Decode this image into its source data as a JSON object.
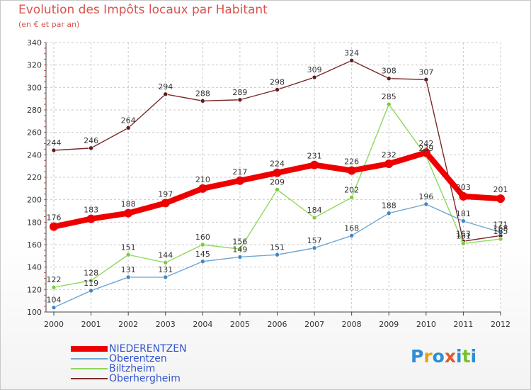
{
  "title": "Evolution des Impôts locaux par Habitant",
  "subtitle": "(en € et par an)",
  "logo": {
    "letters": [
      "P",
      "r",
      "o",
      "x",
      "i",
      "t",
      "i"
    ],
    "colors": [
      "#2a8fd6",
      "#e8a21a",
      "#2a8fd6",
      "#e05a2a",
      "#2a8fd6",
      "#7bbf2e",
      "#2a8fd6"
    ]
  },
  "chart_data": {
    "type": "line",
    "title": "Evolution des Impôts locaux par Habitant",
    "subtitle": "(en € et par an)",
    "xlabel": "",
    "ylabel": "",
    "ylim": [
      100,
      340
    ],
    "yticks": [
      "100",
      "120",
      "140",
      "160",
      "180",
      "200",
      "220",
      "240",
      "260",
      "280",
      "300",
      "320",
      "340"
    ],
    "categories": [
      "2000",
      "2001",
      "2002",
      "2003",
      "2004",
      "2005",
      "2006",
      "2007",
      "2008",
      "2009",
      "2010",
      "2011",
      "2012"
    ],
    "grid": true,
    "legend_position": "bottom-left",
    "series": [
      {
        "name": "Oberhergheim",
        "color": "#7a2a2a",
        "markerColor": "#5e1e1e",
        "width": "thin",
        "values": [
          244,
          246,
          264,
          294,
          288,
          289,
          298,
          309,
          324,
          308,
          307,
          163,
          168
        ],
        "labels": [
          "244",
          "246",
          "264",
          "294",
          "288",
          "289",
          "298",
          "309",
          "324",
          "308",
          "307",
          "163",
          "168"
        ]
      },
      {
        "name": "Biltzheim",
        "color": "#8fd85c",
        "markerColor": "#7ccc3e",
        "width": "thin",
        "values": [
          122,
          128,
          151,
          144,
          160,
          156,
          209,
          184,
          202,
          285,
          239,
          161,
          165
        ],
        "labels": [
          "122",
          "128",
          "151",
          "144",
          "160",
          "156",
          "209",
          "184",
          "202",
          "285",
          "239",
          "161",
          "165"
        ]
      },
      {
        "name": "Oberentzen",
        "color": "#6ea7d4",
        "markerColor": "#3f88c8",
        "width": "thin",
        "values": [
          104,
          119,
          131,
          131,
          145,
          149,
          151,
          157,
          168,
          188,
          196,
          181,
          171
        ],
        "labels": [
          "104",
          "119",
          "131",
          "131",
          "145",
          "149",
          "151",
          "157",
          "168",
          "188",
          "196",
          "181",
          "171"
        ]
      },
      {
        "name": "NIEDERENTZEN",
        "color": "#ee0000",
        "markerColor": "#ee0000",
        "width": "thick",
        "values": [
          176,
          183,
          188,
          197,
          210,
          217,
          224,
          231,
          226,
          232,
          242,
          203,
          201
        ],
        "labels": [
          "176",
          "183",
          "188",
          "197",
          "210",
          "217",
          "224",
          "231",
          "226",
          "232",
          "242",
          "203",
          "201"
        ]
      }
    ],
    "legend": [
      "NIEDERENTZEN",
      "Oberentzen",
      "Biltzheim",
      "Oberhergheim"
    ]
  }
}
